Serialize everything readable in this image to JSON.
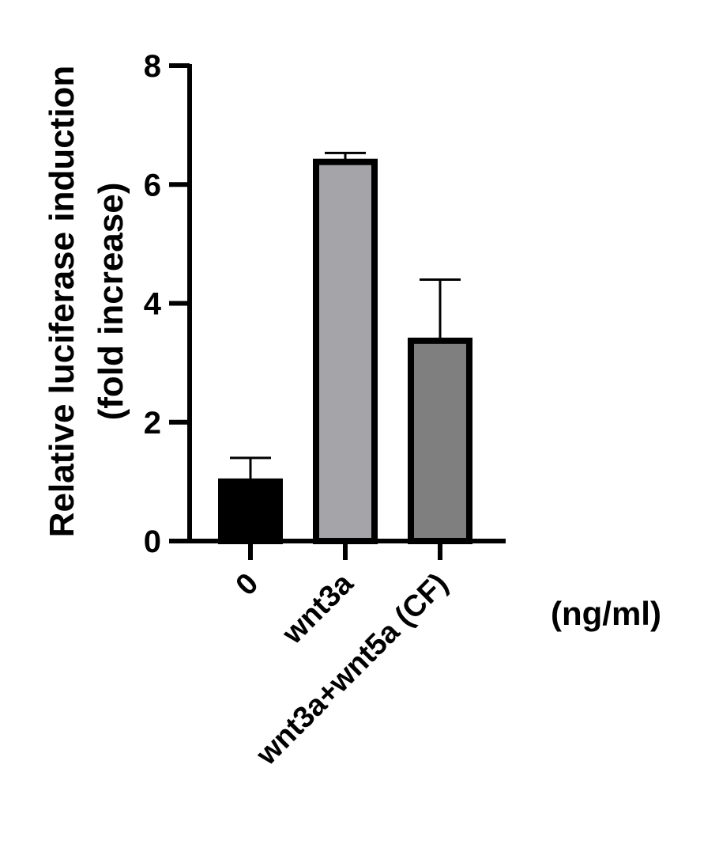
{
  "chart_data": {
    "type": "bar",
    "categories": [
      "0",
      "wnt3a",
      "wnt3a+wnt5a (CF)"
    ],
    "values": [
      1.0,
      6.38,
      3.37
    ],
    "errors": [
      0.4,
      0.15,
      1.03
    ],
    "bar_colors": [
      "#000000",
      "#a5a4a9",
      "#7f7f7f"
    ],
    "ylabel_lines": [
      "Relative luciferase induction",
      "(fold increase)"
    ],
    "xlabel": "",
    "x_unit": "(ng/ml)",
    "ylim": [
      0,
      8
    ],
    "yticks": [
      0,
      2,
      4,
      6,
      8
    ],
    "grid": false
  }
}
